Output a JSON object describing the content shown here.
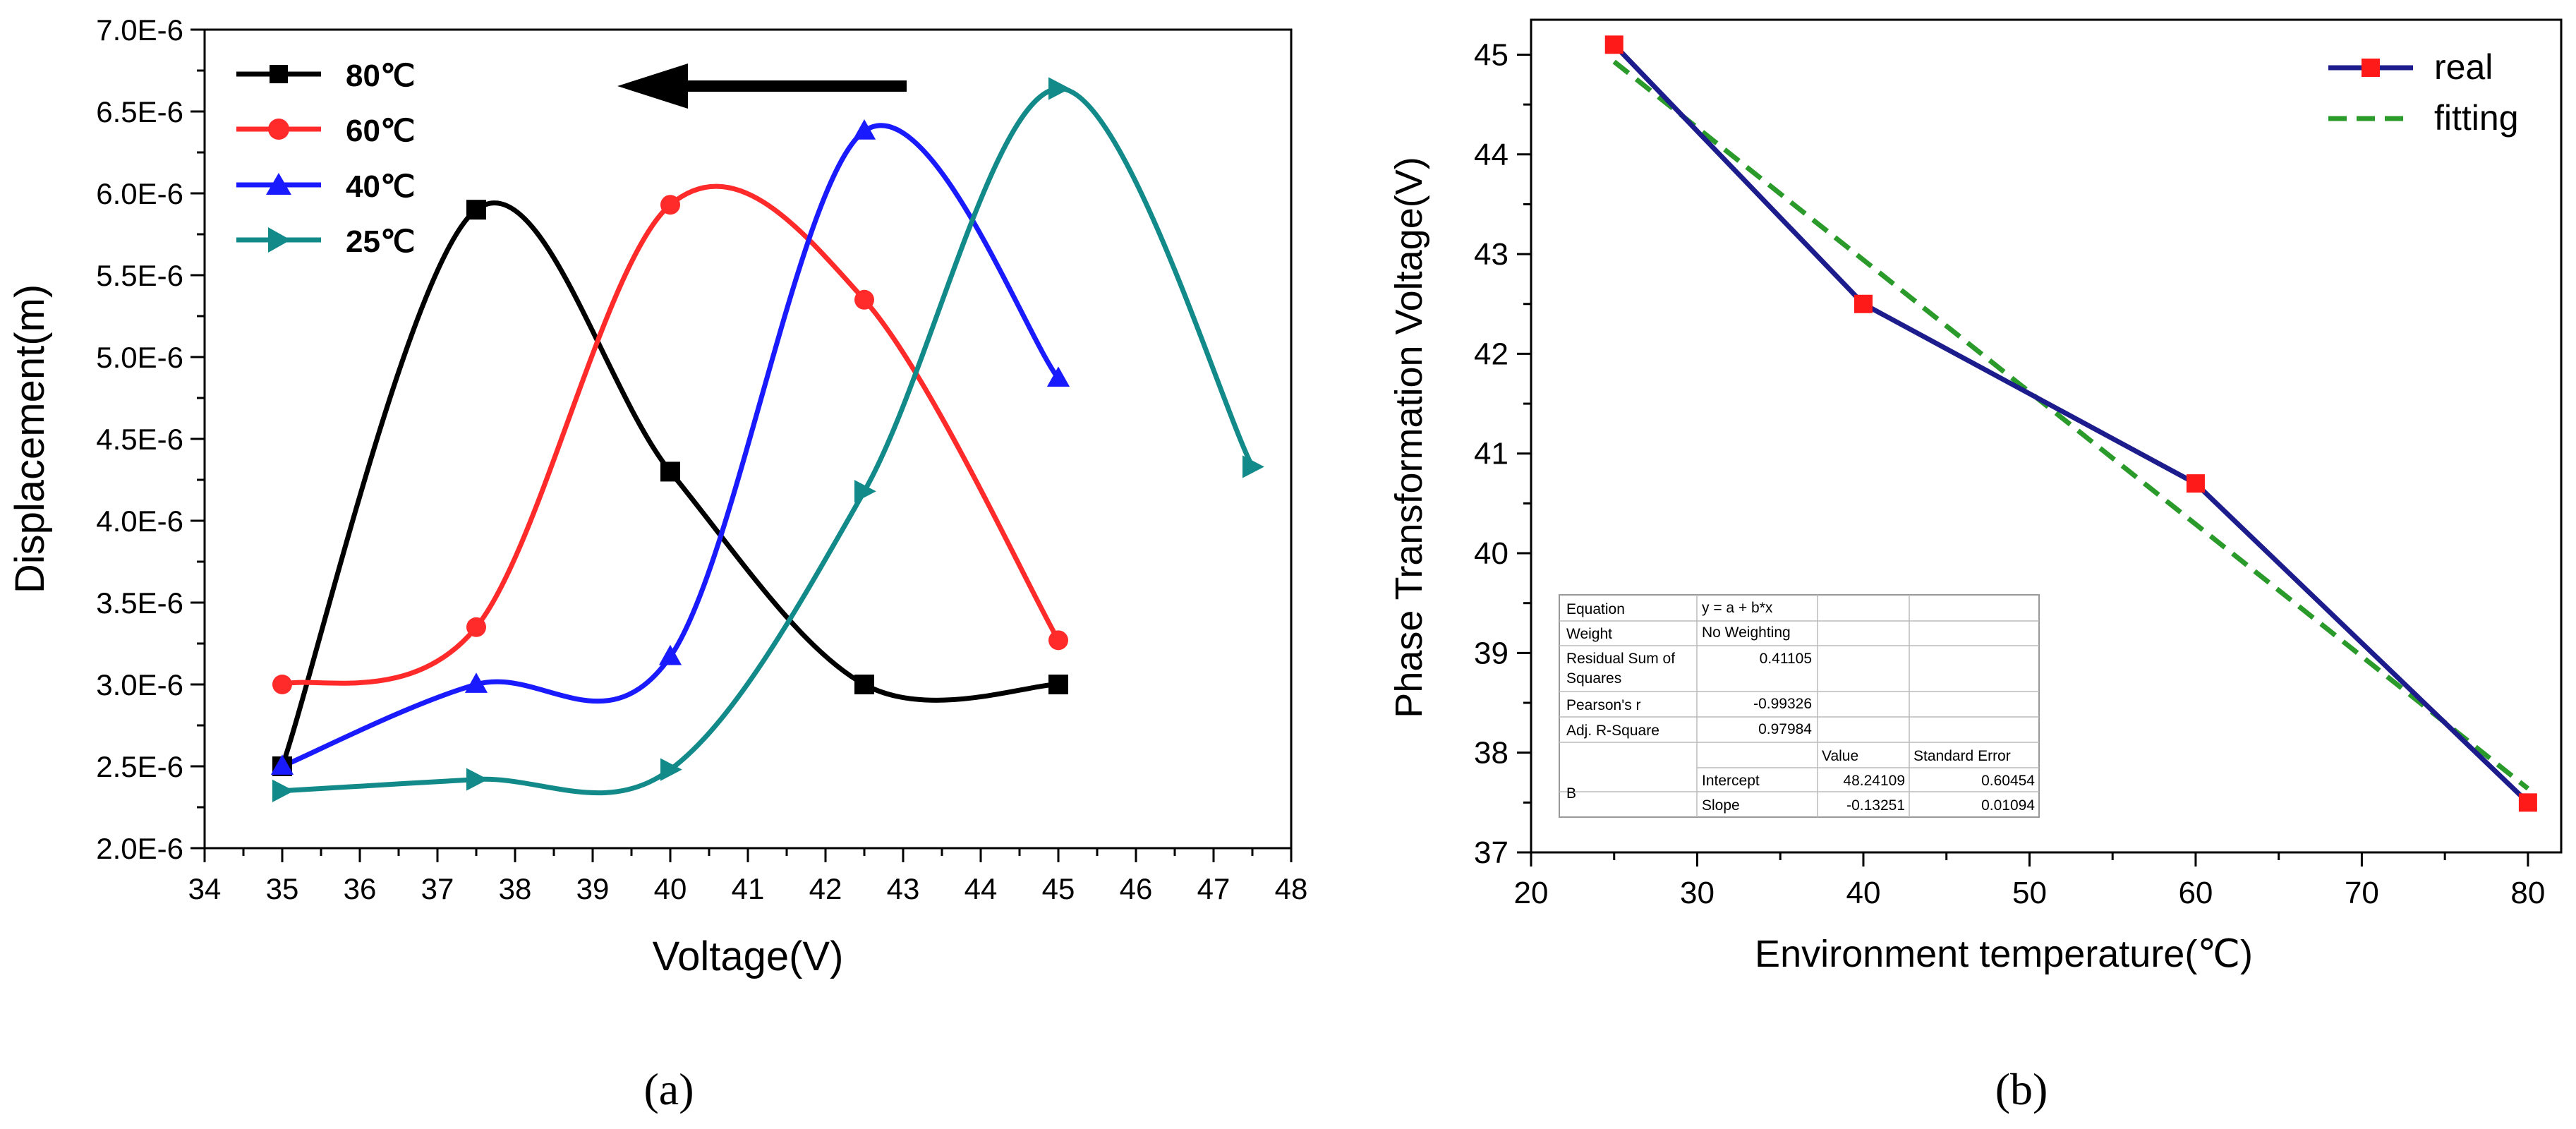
{
  "chart_data": [
    {
      "type": "line",
      "panel_label": "(a)",
      "xlabel": "Voltage(V)",
      "ylabel": "Displacement(m)",
      "xlim": [
        34,
        48
      ],
      "ylim": [
        2e-06,
        7e-06
      ],
      "xticks": [
        34,
        35,
        36,
        37,
        38,
        39,
        40,
        41,
        42,
        43,
        44,
        45,
        46,
        47,
        48
      ],
      "yticks": [
        "2.0E-6",
        "2.5E-6",
        "3.0E-6",
        "3.5E-6",
        "4.0E-6",
        "4.5E-6",
        "5.0E-6",
        "5.5E-6",
        "6.0E-6",
        "6.5E-6",
        "7.0E-6"
      ],
      "legend_position": "top-left",
      "annotation": "arrow pointing left (increasing temperature)",
      "series": [
        {
          "name": "80℃",
          "color": "#000000",
          "marker": "square",
          "x": [
            35,
            37.5,
            40,
            42.5,
            45
          ],
          "y": [
            2.5e-06,
            5.9e-06,
            4.3e-06,
            3e-06,
            3e-06
          ]
        },
        {
          "name": "60℃",
          "color": "#ff2a2a",
          "marker": "circle",
          "x": [
            35,
            37.5,
            40,
            42.5,
            45
          ],
          "y": [
            3e-06,
            3.35e-06,
            5.93e-06,
            5.35e-06,
            3.27e-06
          ]
        },
        {
          "name": "40℃",
          "color": "#1a1aff",
          "marker": "triangle-up",
          "x": [
            35,
            37.5,
            40,
            42.5,
            45
          ],
          "y": [
            2.5e-06,
            3e-06,
            3.17e-06,
            6.38e-06,
            4.87e-06
          ]
        },
        {
          "name": "25℃",
          "color": "#138a8a",
          "marker": "triangle-right",
          "x": [
            35,
            37.5,
            40,
            42.5,
            45,
            47.5
          ],
          "y": [
            2.35e-06,
            2.42e-06,
            2.48e-06,
            4.18e-06,
            6.64e-06,
            4.33e-06
          ]
        }
      ]
    },
    {
      "type": "line",
      "panel_label": "(b)",
      "xlabel": "Environment temperature(℃)",
      "ylabel": "Phase Transformation Voltage(V)",
      "xlim": [
        20,
        82
      ],
      "ylim": [
        37,
        45.35
      ],
      "xticks": [
        20,
        30,
        40,
        50,
        60,
        70,
        80
      ],
      "yticks": [
        37,
        38,
        39,
        40,
        41,
        42,
        43,
        44,
        45
      ],
      "legend_position": "top-right",
      "series": [
        {
          "name": "real",
          "color": "#1c1c8c",
          "marker": "square",
          "marker_color": "#ff1a1a",
          "x": [
            25,
            40,
            60,
            80
          ],
          "y": [
            45.1,
            42.5,
            40.7,
            37.5
          ]
        },
        {
          "name": "fitting",
          "color": "#2a9a2a",
          "dash": true,
          "x": [
            25,
            80
          ],
          "y": [
            44.93,
            37.64
          ]
        }
      ],
      "fit_table": {
        "equation_label": "Equation",
        "equation": "y = a + b*x",
        "weight_label": "Weight",
        "weight": "No Weighting",
        "rss_label_1": "Residual Sum of",
        "rss_label_2": "Squares",
        "rss": "0.41105",
        "pearson_label": "Pearson's r",
        "pearson": "-0.99326",
        "adjr2_label": "Adj. R-Square",
        "adjr2": "0.97984",
        "value_header": "Value",
        "stderr_header": "Standard Error",
        "group": "B",
        "intercept_label": "Intercept",
        "intercept": "48.24109",
        "intercept_err": "0.60454",
        "slope_label": "Slope",
        "slope": "-0.13251",
        "slope_err": "0.01094"
      }
    }
  ]
}
